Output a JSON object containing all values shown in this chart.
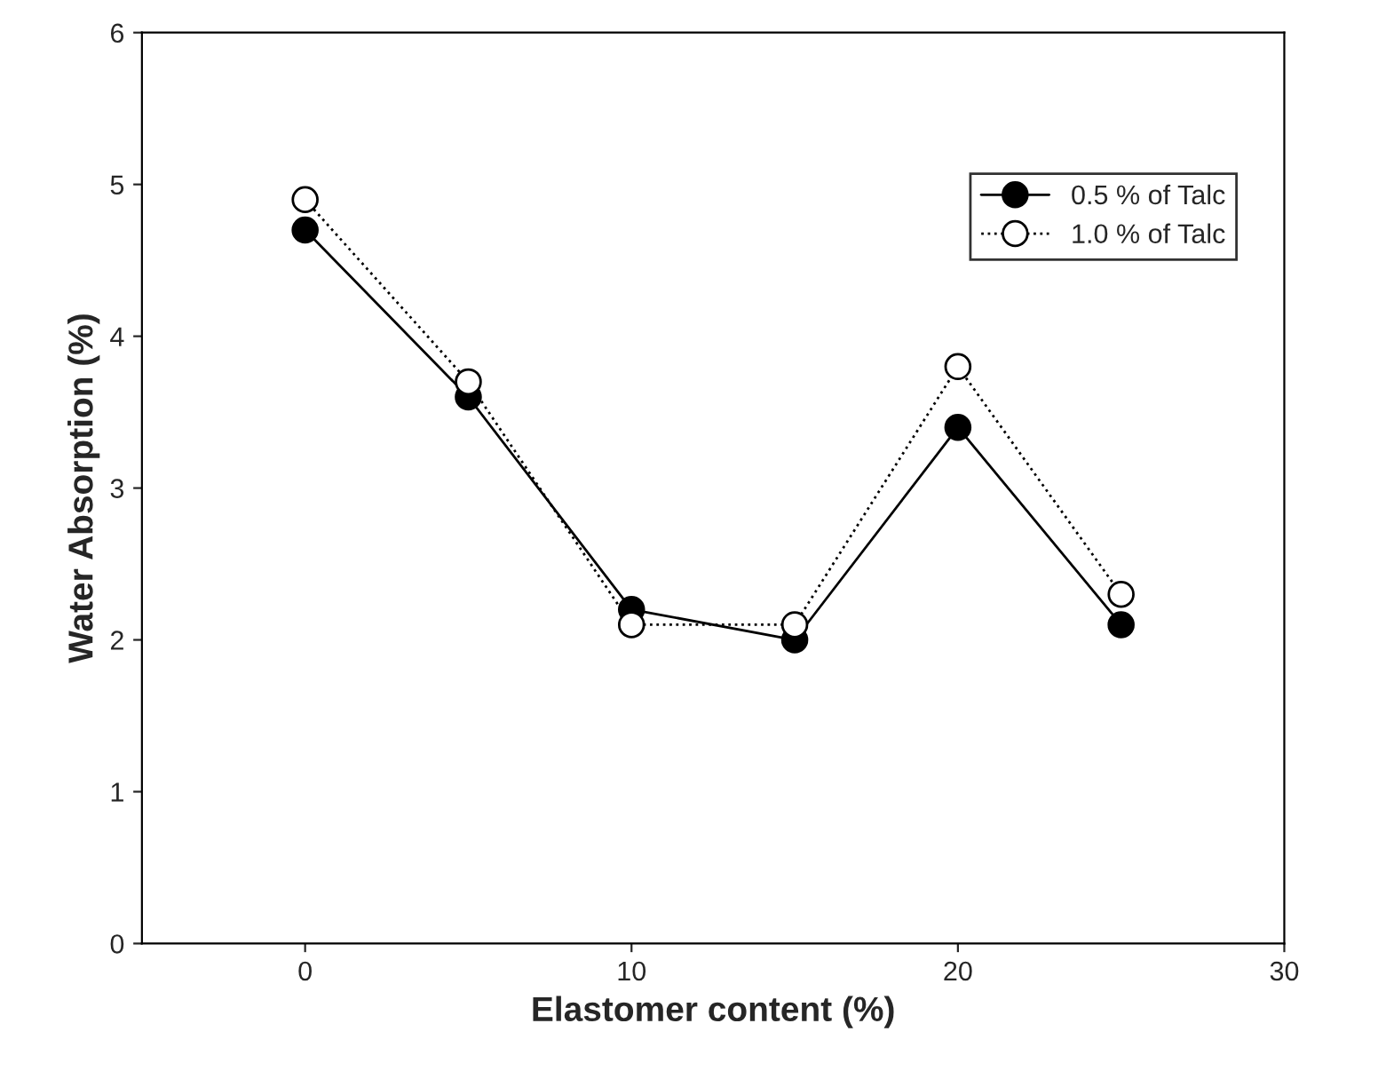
{
  "chart_data": {
    "type": "line",
    "xlabel": "Elastomer content (%)",
    "ylabel": "Water Absorption (%)",
    "x": [
      0,
      5,
      10,
      15,
      20,
      25
    ],
    "series": [
      {
        "name": "0.5 % of Talc",
        "color": "#000000",
        "values": [
          4.7,
          3.6,
          2.2,
          2.0,
          3.4,
          2.1
        ],
        "line_style": "solid",
        "marker": "circle"
      },
      {
        "name": "1.0 % of Talc",
        "color": "#ffffff",
        "values": [
          4.9,
          3.7,
          2.1,
          2.1,
          3.8,
          2.3
        ],
        "line_style": "dotted",
        "marker": "circle"
      }
    ],
    "xlim": [
      -5,
      30
    ],
    "xticks": [
      0,
      10,
      20,
      30
    ],
    "ylim": [
      0,
      6
    ],
    "yticks": [
      0,
      1,
      2,
      3,
      4,
      5,
      6
    ],
    "grid": false,
    "legend": "top right"
  }
}
